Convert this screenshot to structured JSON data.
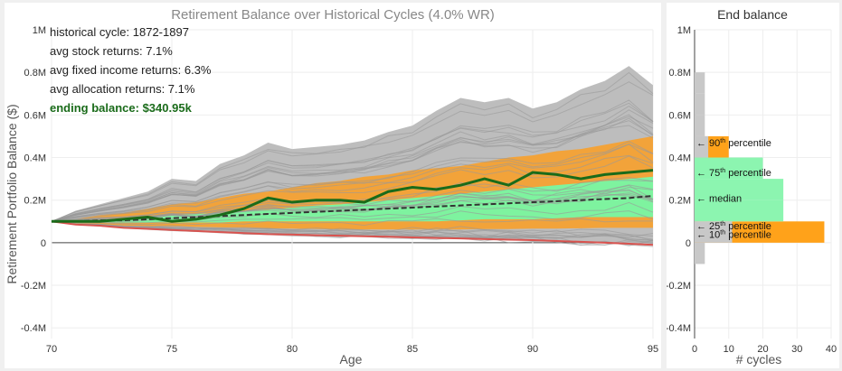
{
  "main": {
    "title": "Retirement Balance over Historical Cycles (4.0% WR)",
    "info": {
      "cycle": "historical cycle: 1872-1897",
      "stock": "avg stock returns: 7.1%",
      "fixed": "avg fixed income returns: 6.3%",
      "alloc": "avg allocation returns: 7.1%",
      "ending": "ending balance: $340.95k"
    }
  },
  "side": {
    "title": "End balance",
    "xlabel": "# cycles",
    "percentiles": {
      "p90": "90",
      "p75": "75",
      "median": "median",
      "p25": "25",
      "p10": "10",
      "suffix_th": "th",
      "word": "percentile"
    }
  },
  "colors": {
    "gray_band": "#bdbdbd",
    "orange_band": "#f2a33a",
    "green_band": "#7ef39f",
    "highlight": "#1a6b1a",
    "median": "#333333",
    "min": "#d9534f",
    "bar_gray": "#c8c8c8",
    "bar_orange": "#ffa21a",
    "bar_green": "#8cf5b0"
  },
  "chart_data": [
    {
      "type": "line",
      "xlabel": "Age",
      "ylabel": "Retirement Portfolio Balance ($)",
      "xlim": [
        70,
        95
      ],
      "ylim": [
        -0.45,
        1.0
      ],
      "x_ticks": [
        70,
        75,
        80,
        85,
        90,
        95
      ],
      "y_ticks": [
        {
          "v": 1.0,
          "label": "1M"
        },
        {
          "v": 0.8,
          "label": "0.8M"
        },
        {
          "v": 0.6,
          "label": "0.6M"
        },
        {
          "v": 0.4,
          "label": "0.4M"
        },
        {
          "v": 0.2,
          "label": "0.2M"
        },
        {
          "v": 0,
          "label": "0"
        },
        {
          "v": -0.2,
          "label": "-0.2M"
        },
        {
          "v": -0.4,
          "label": "-0.4M"
        }
      ],
      "x": [
        70,
        71,
        72,
        73,
        74,
        75,
        76,
        77,
        78,
        79,
        80,
        81,
        82,
        83,
        84,
        85,
        86,
        87,
        88,
        89,
        90,
        91,
        92,
        93,
        94,
        95
      ],
      "bands": {
        "max": [
          0.1,
          0.15,
          0.18,
          0.21,
          0.24,
          0.3,
          0.29,
          0.37,
          0.41,
          0.47,
          0.44,
          0.45,
          0.46,
          0.48,
          0.52,
          0.55,
          0.62,
          0.68,
          0.66,
          0.68,
          0.63,
          0.66,
          0.72,
          0.76,
          0.83,
          0.74
        ],
        "p90": [
          0.1,
          0.11,
          0.13,
          0.14,
          0.16,
          0.18,
          0.19,
          0.21,
          0.23,
          0.24,
          0.26,
          0.28,
          0.29,
          0.31,
          0.32,
          0.34,
          0.35,
          0.36,
          0.38,
          0.4,
          0.41,
          0.43,
          0.44,
          0.46,
          0.48,
          0.5
        ],
        "p75": [
          0.1,
          0.105,
          0.11,
          0.115,
          0.12,
          0.13,
          0.135,
          0.14,
          0.15,
          0.155,
          0.165,
          0.175,
          0.18,
          0.19,
          0.2,
          0.21,
          0.22,
          0.23,
          0.24,
          0.25,
          0.26,
          0.27,
          0.28,
          0.29,
          0.3,
          0.31
        ],
        "median": [
          0.1,
          0.1,
          0.105,
          0.105,
          0.11,
          0.115,
          0.12,
          0.125,
          0.13,
          0.135,
          0.14,
          0.145,
          0.15,
          0.155,
          0.16,
          0.165,
          0.17,
          0.175,
          0.18,
          0.185,
          0.19,
          0.195,
          0.2,
          0.205,
          0.21,
          0.22
        ],
        "p25": [
          0.1,
          0.095,
          0.095,
          0.095,
          0.095,
          0.095,
          0.095,
          0.095,
          0.1,
          0.1,
          0.1,
          0.1,
          0.1,
          0.1,
          0.1,
          0.1,
          0.1,
          0.105,
          0.11,
          0.11,
          0.11,
          0.115,
          0.12,
          0.12,
          0.12,
          0.12
        ],
        "p10": [
          0.1,
          0.09,
          0.085,
          0.08,
          0.078,
          0.076,
          0.074,
          0.072,
          0.07,
          0.068,
          0.066,
          0.064,
          0.062,
          0.062,
          0.062,
          0.062,
          0.062,
          0.062,
          0.064,
          0.064,
          0.066,
          0.066,
          0.068,
          0.07,
          0.07,
          0.07
        ],
        "min": [
          0.1,
          0.085,
          0.08,
          0.07,
          0.065,
          0.06,
          0.055,
          0.05,
          0.045,
          0.04,
          0.038,
          0.035,
          0.033,
          0.03,
          0.028,
          0.025,
          0.022,
          0.02,
          0.017,
          0.014,
          0.012,
          0.008,
          0.004,
          0.0,
          -0.005,
          -0.01
        ]
      },
      "highlight": {
        "name": "1872-1897",
        "values": [
          0.1,
          0.1,
          0.1,
          0.11,
          0.12,
          0.1,
          0.11,
          0.13,
          0.16,
          0.21,
          0.19,
          0.2,
          0.2,
          0.19,
          0.24,
          0.26,
          0.25,
          0.27,
          0.3,
          0.27,
          0.33,
          0.32,
          0.3,
          0.32,
          0.33,
          0.34
        ]
      }
    },
    {
      "type": "bar",
      "orientation": "horizontal",
      "xlabel": "# cycles",
      "xlim": [
        0,
        40
      ],
      "x_ticks": [
        0,
        10,
        20,
        30,
        40
      ],
      "ylim": [
        -0.45,
        1.0
      ],
      "y_ticks": [
        {
          "v": 1.0,
          "label": "1M"
        },
        {
          "v": 0.8,
          "label": "0.8M"
        },
        {
          "v": 0.6,
          "label": "0.6M"
        },
        {
          "v": 0.4,
          "label": "0.4M"
        },
        {
          "v": 0.2,
          "label": "0.2M"
        },
        {
          "v": 0,
          "label": "0"
        },
        {
          "v": -0.2,
          "label": "-0.2M"
        },
        {
          "v": -0.4,
          "label": "-0.4M"
        }
      ],
      "bins": [
        {
          "from": -0.1,
          "to": 0.0,
          "count": 3,
          "group": "gray"
        },
        {
          "from": 0.0,
          "to": 0.1,
          "count": 38,
          "group": "orange"
        },
        {
          "from": 0.1,
          "to": 0.2,
          "count": 26,
          "group": "green"
        },
        {
          "from": 0.2,
          "to": 0.3,
          "count": 26,
          "group": "green"
        },
        {
          "from": 0.3,
          "to": 0.4,
          "count": 20,
          "group": "green"
        },
        {
          "from": 0.4,
          "to": 0.5,
          "count": 10,
          "group": "orange"
        },
        {
          "from": 0.5,
          "to": 0.6,
          "count": 3,
          "group": "gray"
        },
        {
          "from": 0.6,
          "to": 0.7,
          "count": 3,
          "group": "gray"
        },
        {
          "from": 0.7,
          "to": 0.8,
          "count": 3,
          "group": "gray"
        }
      ],
      "gray_overlay_bins": [
        {
          "from": 0.0,
          "to": 0.1,
          "count": 11
        },
        {
          "from": 0.4,
          "to": 0.5,
          "count": 4
        }
      ],
      "percentile_marks": {
        "p90": 0.47,
        "p75": 0.33,
        "median": 0.21,
        "p25": 0.08,
        "p10": 0.04
      }
    }
  ]
}
